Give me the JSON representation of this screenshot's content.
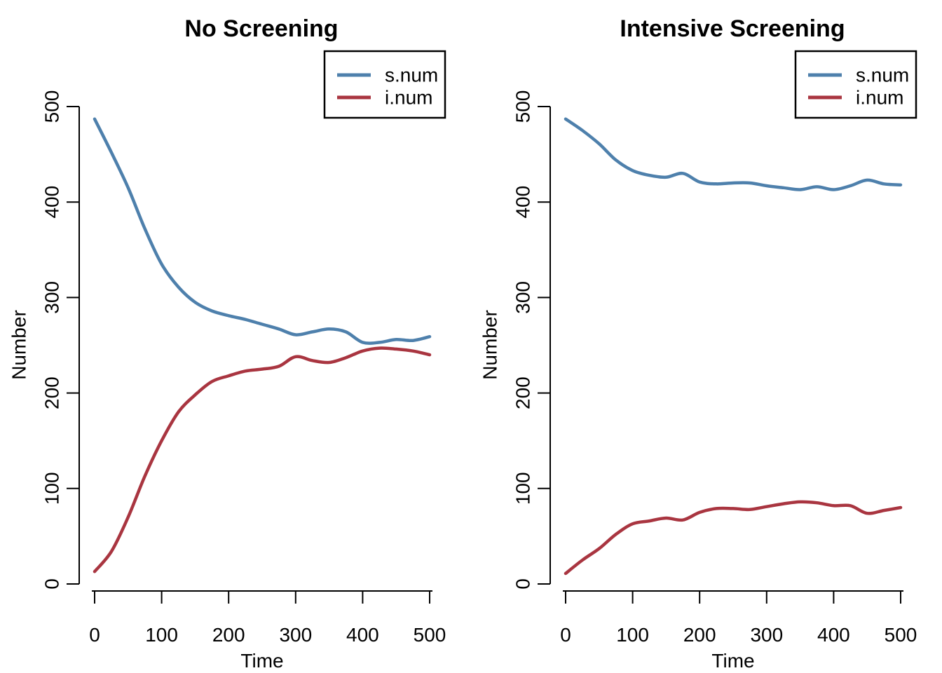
{
  "figure": {
    "background": "#ffffff",
    "text_color": "#000000",
    "axis_color": "#000000"
  },
  "chart_data": [
    {
      "type": "line",
      "title": "No Screening",
      "xlabel": "Time",
      "ylabel": "Number",
      "xlim": [
        0,
        500
      ],
      "ylim": [
        0,
        500
      ],
      "xticks": [
        0,
        100,
        200,
        300,
        400,
        500
      ],
      "yticks": [
        0,
        100,
        200,
        300,
        400,
        500
      ],
      "grid": false,
      "legend": {
        "position": "top-right",
        "entries": [
          "s.num",
          "i.num"
        ]
      },
      "x": [
        0,
        25,
        50,
        75,
        100,
        125,
        150,
        175,
        200,
        225,
        250,
        275,
        300,
        325,
        350,
        375,
        400,
        425,
        450,
        475,
        500
      ],
      "series": [
        {
          "name": "s.num",
          "color": "#4E80AC",
          "values": [
            487,
            452,
            415,
            372,
            335,
            311,
            295,
            286,
            281,
            277,
            272,
            267,
            261,
            264,
            267,
            264,
            253,
            253,
            256,
            255,
            259
          ]
        },
        {
          "name": "i.num",
          "color": "#A93540",
          "values": [
            13,
            34,
            70,
            113,
            150,
            180,
            198,
            212,
            218,
            223,
            225,
            228,
            238,
            234,
            232,
            237,
            244,
            247,
            246,
            244,
            240
          ]
        }
      ]
    },
    {
      "type": "line",
      "title": "Intensive Screening",
      "xlabel": "Time",
      "ylabel": "Number",
      "xlim": [
        0,
        500
      ],
      "ylim": [
        0,
        500
      ],
      "xticks": [
        0,
        100,
        200,
        300,
        400,
        500
      ],
      "yticks": [
        0,
        100,
        200,
        300,
        400,
        500
      ],
      "grid": false,
      "legend": {
        "position": "top-right",
        "entries": [
          "s.num",
          "i.num"
        ]
      },
      "x": [
        0,
        25,
        50,
        75,
        100,
        125,
        150,
        175,
        200,
        225,
        250,
        275,
        300,
        325,
        350,
        375,
        400,
        425,
        450,
        475,
        500
      ],
      "series": [
        {
          "name": "s.num",
          "color": "#4E80AC",
          "values": [
            487,
            475,
            461,
            444,
            433,
            428,
            426,
            430,
            421,
            419,
            420,
            420,
            417,
            415,
            413,
            416,
            413,
            417,
            423,
            419,
            418
          ]
        },
        {
          "name": "i.num",
          "color": "#A93540",
          "values": [
            11,
            25,
            37,
            52,
            63,
            66,
            69,
            67,
            75,
            79,
            79,
            78,
            81,
            84,
            86,
            85,
            82,
            82,
            74,
            77,
            80
          ]
        }
      ]
    }
  ]
}
